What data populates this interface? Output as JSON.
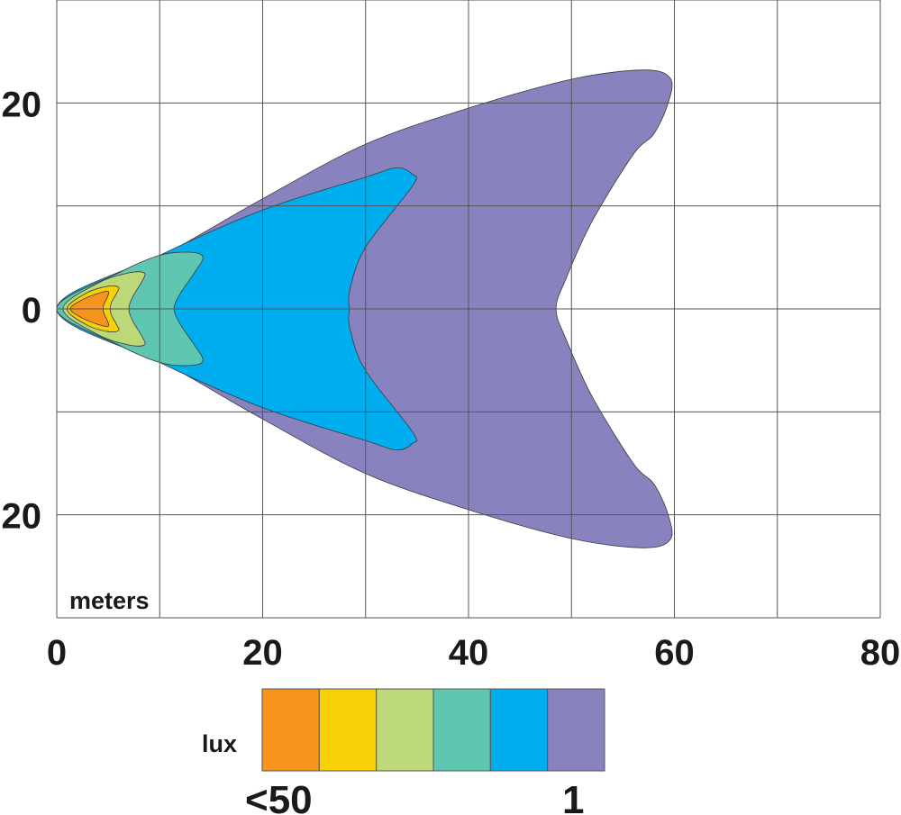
{
  "chart_data": {
    "type": "contour",
    "x_unit_label": "meters",
    "xlim": [
      0,
      80
    ],
    "ylim": [
      -30,
      30
    ],
    "x_ticks": [
      0,
      20,
      40,
      60,
      80
    ],
    "x_tick_labels": [
      "0",
      "20",
      "40",
      "60",
      "80"
    ],
    "y_ticks": [
      20,
      0,
      -20
    ],
    "y_tick_labels": [
      "20",
      "0",
      "20"
    ],
    "grid": true,
    "grid_step_x": 10,
    "grid_step_y": 10,
    "contours": [
      {
        "level": 1,
        "color": "#8883be",
        "points": [
          [
            0,
            0
          ],
          [
            10,
            5
          ],
          [
            20,
            10.7
          ],
          [
            30,
            16
          ],
          [
            40,
            19.5
          ],
          [
            50,
            22.3
          ],
          [
            57,
            23.2
          ],
          [
            59.6,
            22.4
          ],
          [
            59.4,
            20
          ],
          [
            58,
            17
          ],
          [
            56,
            15
          ],
          [
            52,
            8.5
          ],
          [
            49.5,
            3
          ],
          [
            48.5,
            0
          ],
          [
            49.5,
            -3
          ],
          [
            52,
            -8.5
          ],
          [
            56,
            -15
          ],
          [
            58,
            -17
          ],
          [
            59.4,
            -20
          ],
          [
            59.6,
            -22.4
          ],
          [
            57,
            -23.2
          ],
          [
            50,
            -22.3
          ],
          [
            40,
            -19.5
          ],
          [
            30,
            -16
          ],
          [
            20,
            -10.7
          ],
          [
            10,
            -5
          ]
        ]
      },
      {
        "level": 2,
        "color": "#00aeef",
        "points": [
          [
            0,
            0
          ],
          [
            10,
            5.2
          ],
          [
            20,
            9.6
          ],
          [
            30,
            12.8
          ],
          [
            33,
            13.7
          ],
          [
            34.5,
            13.1
          ],
          [
            34.6,
            12
          ],
          [
            30,
            6
          ],
          [
            28.5,
            2
          ],
          [
            28.4,
            0
          ],
          [
            28.5,
            -2
          ],
          [
            30,
            -6
          ],
          [
            34.6,
            -12
          ],
          [
            34.5,
            -13.1
          ],
          [
            33,
            -13.7
          ],
          [
            30,
            -12.8
          ],
          [
            20,
            -9.6
          ],
          [
            10,
            -5.2
          ]
        ]
      },
      {
        "level": 3,
        "color": "#5fc6b1",
        "points": [
          [
            0,
            0
          ],
          [
            6,
            3.5
          ],
          [
            10,
            5.2
          ],
          [
            13,
            5.5
          ],
          [
            14.2,
            5
          ],
          [
            13.3,
            3.4
          ],
          [
            12,
            1.5
          ],
          [
            11.4,
            0
          ],
          [
            12,
            -1.5
          ],
          [
            13.3,
            -3.4
          ],
          [
            14.2,
            -5
          ],
          [
            13,
            -5.5
          ],
          [
            10,
            -5.2
          ],
          [
            6,
            -3.5
          ]
        ]
      },
      {
        "level": 4,
        "color": "#bcd879",
        "points": [
          [
            0.6,
            0
          ],
          [
            4,
            2.5
          ],
          [
            7,
            3.5
          ],
          [
            8.5,
            3.5
          ],
          [
            8.3,
            2.7
          ],
          [
            7.4,
            1.2
          ],
          [
            7,
            0
          ],
          [
            7.4,
            -1.2
          ],
          [
            8.3,
            -2.7
          ],
          [
            8.5,
            -3.5
          ],
          [
            7,
            -3.5
          ],
          [
            4,
            -2.5
          ]
        ]
      },
      {
        "level": 5,
        "color": "#f8d007",
        "points": [
          [
            1,
            0
          ],
          [
            3,
            1.6
          ],
          [
            5,
            2.2
          ],
          [
            6,
            2.1
          ],
          [
            5.8,
            1.5
          ],
          [
            5.3,
            0.6
          ],
          [
            5.2,
            0
          ],
          [
            5.3,
            -0.6
          ],
          [
            5.8,
            -1.5
          ],
          [
            6,
            -2.1
          ],
          [
            5,
            -2.2
          ],
          [
            3,
            -1.6
          ]
        ]
      },
      {
        "level": 6,
        "color": "#f7941d",
        "points": [
          [
            1.3,
            0
          ],
          [
            2.5,
            0.9
          ],
          [
            4,
            1.5
          ],
          [
            5,
            1.7
          ],
          [
            4.9,
            1.1
          ],
          [
            4.6,
            0.5
          ],
          [
            4.5,
            0
          ],
          [
            4.6,
            -0.5
          ],
          [
            4.9,
            -1.1
          ],
          [
            5,
            -1.7
          ],
          [
            4,
            -1.5
          ],
          [
            2.5,
            -0.9
          ]
        ]
      }
    ],
    "legend": {
      "title": "lux",
      "left_label": "<50",
      "right_label": "1",
      "colors": [
        "#f7941d",
        "#f8d007",
        "#bcd879",
        "#5fc6b1",
        "#00aeef",
        "#8883be"
      ]
    }
  }
}
